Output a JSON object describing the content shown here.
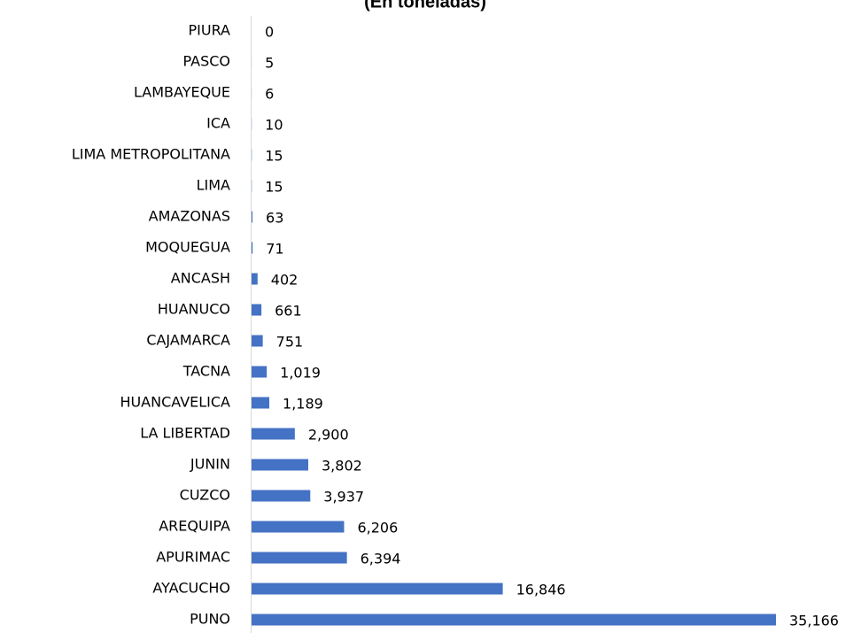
{
  "chart_data": {
    "type": "barh",
    "title": "(En toneladas)",
    "categories": [
      "PIURA",
      "PASCO",
      "LAMBAYEQUE",
      "ICA",
      "LIMA METROPOLITANA",
      "LIMA",
      "AMAZONAS",
      "MOQUEGUA",
      "ANCASH",
      "HUANUCO",
      "CAJAMARCA",
      "TACNA",
      "HUANCAVELICA",
      "LA LIBERTAD",
      "JUNIN",
      "CUZCO",
      "AREQUIPA",
      "APURIMAC",
      "AYACUCHO",
      "PUNO"
    ],
    "values": [
      0,
      5,
      6,
      10,
      15,
      15,
      63,
      71,
      402,
      661,
      751,
      1019,
      1189,
      2900,
      3802,
      3937,
      6206,
      6394,
      16846,
      35166
    ],
    "value_labels": [
      "0",
      "5",
      "6",
      "10",
      "15",
      "15",
      "63",
      "71",
      "402",
      "661",
      "751",
      "1,019",
      "1,189",
      "2,900",
      "3,802",
      "3,937",
      "6,206",
      "6,394",
      "16,846",
      "35,166"
    ],
    "color": "#4472c4"
  }
}
